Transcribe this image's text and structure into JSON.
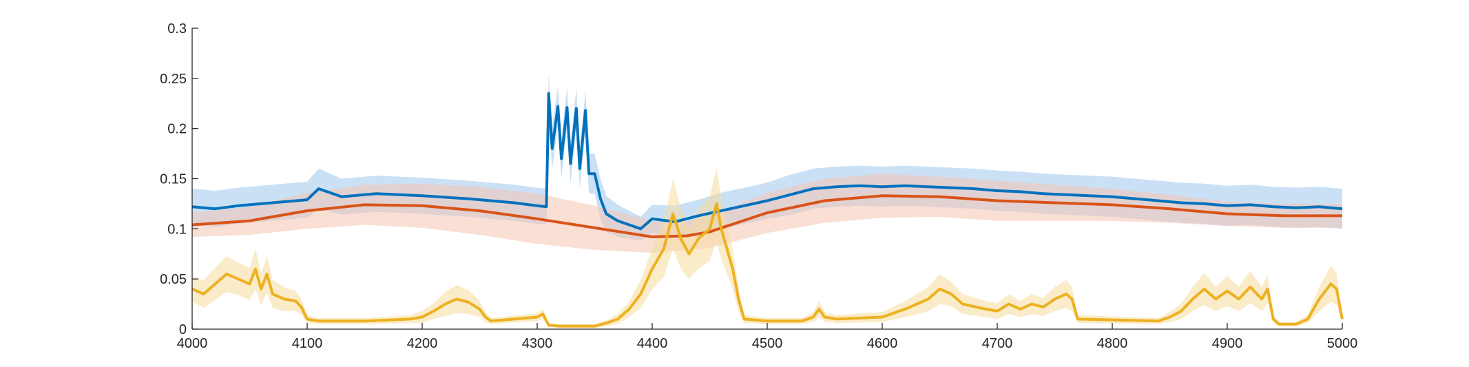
{
  "chart_data": {
    "type": "line",
    "title": "",
    "xlabel": "",
    "ylabel": "",
    "xlim": [
      4000,
      5000
    ],
    "ylim": [
      0,
      0.3
    ],
    "grid": false,
    "x_ticks": [
      "4000",
      "4100",
      "4200",
      "4300",
      "4400",
      "4500",
      "4600",
      "4700",
      "4800",
      "4900",
      "5000"
    ],
    "y_ticks": [
      "0",
      "0.05",
      "0.1",
      "0.15",
      "0.2",
      "0.25",
      "0.3"
    ],
    "series": [
      {
        "color": "#0072BD",
        "band_color": "#9fc9ec",
        "x": [
          4000,
          4020,
          4040,
          4060,
          4080,
          4100,
          4110,
          4130,
          4160,
          4200,
          4240,
          4280,
          4300,
          4308,
          4310,
          4313,
          4318,
          4321,
          4326,
          4329,
          4334,
          4337,
          4342,
          4345,
          4350,
          4355,
          4360,
          4370,
          4380,
          4390,
          4400,
          4420,
          4440,
          4460,
          4480,
          4500,
          4520,
          4540,
          4560,
          4580,
          4600,
          4620,
          4640,
          4660,
          4680,
          4700,
          4720,
          4740,
          4760,
          4780,
          4800,
          4820,
          4840,
          4860,
          4880,
          4900,
          4920,
          4940,
          4960,
          4980,
          5000
        ],
        "y": [
          0.122,
          0.12,
          0.123,
          0.125,
          0.127,
          0.129,
          0.14,
          0.132,
          0.135,
          0.133,
          0.13,
          0.126,
          0.123,
          0.122,
          0.235,
          0.18,
          0.222,
          0.17,
          0.221,
          0.165,
          0.22,
          0.16,
          0.218,
          0.155,
          0.155,
          0.13,
          0.115,
          0.108,
          0.104,
          0.1,
          0.11,
          0.107,
          0.113,
          0.118,
          0.123,
          0.128,
          0.134,
          0.14,
          0.142,
          0.143,
          0.142,
          0.143,
          0.142,
          0.141,
          0.14,
          0.138,
          0.137,
          0.135,
          0.134,
          0.133,
          0.132,
          0.13,
          0.128,
          0.126,
          0.125,
          0.123,
          0.124,
          0.122,
          0.121,
          0.122,
          0.12
        ],
        "band": [
          0.018,
          0.018,
          0.018,
          0.018,
          0.018,
          0.018,
          0.02,
          0.018,
          0.018,
          0.018,
          0.018,
          0.018,
          0.018,
          0.018,
          0.02,
          0.02,
          0.02,
          0.02,
          0.02,
          0.02,
          0.02,
          0.02,
          0.02,
          0.02,
          0.02,
          0.02,
          0.018,
          0.016,
          0.014,
          0.012,
          0.014,
          0.016,
          0.016,
          0.018,
          0.018,
          0.018,
          0.02,
          0.02,
          0.02,
          0.02,
          0.02,
          0.02,
          0.02,
          0.02,
          0.02,
          0.02,
          0.02,
          0.02,
          0.02,
          0.02,
          0.02,
          0.02,
          0.02,
          0.02,
          0.02,
          0.02,
          0.02,
          0.02,
          0.02,
          0.02,
          0.02
        ]
      },
      {
        "color": "#D95319",
        "band_color": "#f5c4b2",
        "x": [
          4000,
          4050,
          4100,
          4150,
          4200,
          4250,
          4300,
          4350,
          4400,
          4430,
          4450,
          4500,
          4550,
          4600,
          4650,
          4700,
          4750,
          4800,
          4850,
          4900,
          4950,
          5000
        ],
        "y": [
          0.104,
          0.108,
          0.118,
          0.124,
          0.123,
          0.118,
          0.11,
          0.101,
          0.092,
          0.093,
          0.097,
          0.116,
          0.128,
          0.133,
          0.132,
          0.128,
          0.126,
          0.124,
          0.12,
          0.115,
          0.113,
          0.113
        ],
        "band": [
          0.012,
          0.014,
          0.018,
          0.02,
          0.022,
          0.024,
          0.025,
          0.022,
          0.016,
          0.014,
          0.016,
          0.02,
          0.022,
          0.022,
          0.02,
          0.02,
          0.018,
          0.016,
          0.014,
          0.012,
          0.012,
          0.012
        ]
      },
      {
        "color": "#EDB120",
        "band_color": "#f6dd9c",
        "x": [
          4000,
          4010,
          4020,
          4030,
          4040,
          4050,
          4055,
          4060,
          4065,
          4070,
          4080,
          4090,
          4095,
          4100,
          4110,
          4150,
          4190,
          4200,
          4210,
          4220,
          4230,
          4240,
          4250,
          4255,
          4260,
          4300,
          4305,
          4310,
          4320,
          4350,
          4360,
          4370,
          4380,
          4390,
          4400,
          4410,
          4418,
          4425,
          4432,
          4440,
          4450,
          4456,
          4460,
          4465,
          4470,
          4475,
          4480,
          4500,
          4530,
          4540,
          4545,
          4550,
          4560,
          4600,
          4620,
          4640,
          4650,
          4660,
          4670,
          4690,
          4700,
          4710,
          4720,
          4730,
          4740,
          4750,
          4760,
          4765,
          4770,
          4840,
          4850,
          4860,
          4870,
          4880,
          4890,
          4900,
          4910,
          4920,
          4930,
          4935,
          4940,
          4945,
          4960,
          4970,
          4980,
          4990,
          4995,
          5000
        ],
        "y": [
          0.04,
          0.035,
          0.045,
          0.055,
          0.05,
          0.045,
          0.06,
          0.04,
          0.055,
          0.035,
          0.03,
          0.028,
          0.022,
          0.01,
          0.008,
          0.008,
          0.01,
          0.012,
          0.018,
          0.025,
          0.03,
          0.027,
          0.02,
          0.012,
          0.008,
          0.012,
          0.015,
          0.004,
          0.003,
          0.003,
          0.006,
          0.01,
          0.02,
          0.035,
          0.06,
          0.08,
          0.115,
          0.09,
          0.075,
          0.09,
          0.1,
          0.125,
          0.1,
          0.08,
          0.06,
          0.03,
          0.01,
          0.008,
          0.008,
          0.012,
          0.02,
          0.012,
          0.01,
          0.012,
          0.02,
          0.03,
          0.04,
          0.035,
          0.025,
          0.02,
          0.018,
          0.025,
          0.02,
          0.025,
          0.022,
          0.03,
          0.035,
          0.03,
          0.01,
          0.008,
          0.012,
          0.018,
          0.03,
          0.04,
          0.03,
          0.038,
          0.03,
          0.042,
          0.03,
          0.04,
          0.01,
          0.005,
          0.005,
          0.01,
          0.03,
          0.045,
          0.04,
          0.01
        ],
        "band": [
          0.012,
          0.014,
          0.016,
          0.018,
          0.016,
          0.016,
          0.02,
          0.016,
          0.018,
          0.014,
          0.012,
          0.01,
          0.008,
          0.004,
          0.003,
          0.003,
          0.004,
          0.006,
          0.008,
          0.012,
          0.014,
          0.012,
          0.008,
          0.005,
          0.003,
          0.004,
          0.005,
          0.002,
          0.002,
          0.002,
          0.003,
          0.005,
          0.008,
          0.014,
          0.02,
          0.028,
          0.035,
          0.03,
          0.025,
          0.03,
          0.032,
          0.036,
          0.03,
          0.025,
          0.02,
          0.012,
          0.004,
          0.003,
          0.003,
          0.005,
          0.008,
          0.005,
          0.004,
          0.005,
          0.008,
          0.012,
          0.015,
          0.012,
          0.01,
          0.008,
          0.008,
          0.01,
          0.008,
          0.01,
          0.009,
          0.012,
          0.014,
          0.012,
          0.004,
          0.003,
          0.005,
          0.008,
          0.012,
          0.016,
          0.012,
          0.015,
          0.012,
          0.016,
          0.012,
          0.014,
          0.004,
          0.002,
          0.002,
          0.004,
          0.012,
          0.018,
          0.016,
          0.004
        ]
      }
    ]
  }
}
